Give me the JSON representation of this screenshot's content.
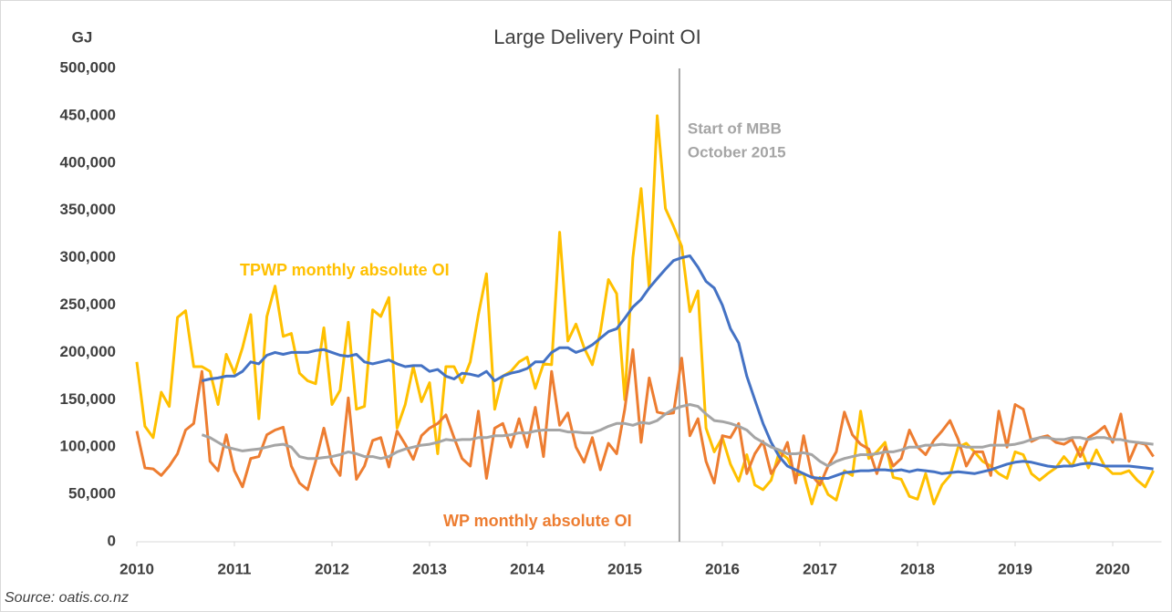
{
  "chart_data": {
    "type": "line",
    "title": "Large Delivery Point OI",
    "y_label": "GJ",
    "source": "Source:  oatis.co.nz",
    "xlim": [
      2010,
      2020.5
    ],
    "xticks": [
      2010,
      2011,
      2012,
      2013,
      2014,
      2015,
      2016,
      2017,
      2018,
      2019,
      2020
    ],
    "ylim": [
      0,
      500000
    ],
    "yticks": [
      0,
      {
        "value": 50000,
        "label": "50,000"
      },
      {
        "value": 100000,
        "label": "100,000"
      },
      {
        "value": 150000,
        "label": "150,000"
      },
      {
        "value": 200000,
        "label": "200,000"
      },
      {
        "value": 250000,
        "label": "250,000"
      },
      {
        "value": 300000,
        "label": "300,000"
      },
      {
        "value": 350000,
        "label": "350,000"
      },
      {
        "value": 400000,
        "label": "400,000"
      },
      {
        "value": 450000,
        "label": "450,000"
      },
      {
        "value": 500000,
        "label": "500,000"
      }
    ],
    "grid": false,
    "marker": {
      "x": 2015.56,
      "label": [
        "Start of MBB",
        "October 2015"
      ],
      "color": "#A5A5A5"
    },
    "x": [
      2010,
      2010.083,
      2010.167,
      2010.25,
      2010.333,
      2010.417,
      2010.5,
      2010.583,
      2010.667,
      2010.75,
      2010.833,
      2010.917,
      2011,
      2011.083,
      2011.167,
      2011.25,
      2011.333,
      2011.417,
      2011.5,
      2011.583,
      2011.667,
      2011.75,
      2011.833,
      2011.917,
      2012,
      2012.083,
      2012.167,
      2012.25,
      2012.333,
      2012.417,
      2012.5,
      2012.583,
      2012.667,
      2012.75,
      2012.833,
      2012.917,
      2013,
      2013.083,
      2013.167,
      2013.25,
      2013.333,
      2013.417,
      2013.5,
      2013.583,
      2013.667,
      2013.75,
      2013.833,
      2013.917,
      2014,
      2014.083,
      2014.167,
      2014.25,
      2014.333,
      2014.417,
      2014.5,
      2014.583,
      2014.667,
      2014.75,
      2014.833,
      2014.917,
      2015,
      2015.083,
      2015.167,
      2015.25,
      2015.333,
      2015.417,
      2015.5,
      2015.583,
      2015.667,
      2015.75,
      2015.833,
      2015.917,
      2016,
      2016.083,
      2016.167,
      2016.25,
      2016.333,
      2016.417,
      2016.5,
      2016.583,
      2016.667,
      2016.75,
      2016.833,
      2016.917,
      2017,
      2017.083,
      2017.167,
      2017.25,
      2017.333,
      2017.417,
      2017.5,
      2017.583,
      2017.667,
      2017.75,
      2017.833,
      2017.917,
      2018,
      2018.083,
      2018.167,
      2018.25,
      2018.333,
      2018.417,
      2018.5,
      2018.583,
      2018.667,
      2018.75,
      2018.833,
      2018.917,
      2019,
      2019.083,
      2019.167,
      2019.25,
      2019.333,
      2019.417,
      2019.5,
      2019.583,
      2019.667,
      2019.75,
      2019.833,
      2019.917,
      2020,
      2020.083,
      2020.167,
      2020.25,
      2020.333,
      2020.417
    ],
    "series": [
      {
        "name": "TPWP monthly absolute OI",
        "color": "#FFC000",
        "values": [
          190000,
          122000,
          110000,
          158000,
          143000,
          237000,
          244000,
          185000,
          185000,
          180000,
          145000,
          198000,
          178000,
          205000,
          240000,
          130000,
          238000,
          270000,
          217000,
          220000,
          178000,
          170000,
          167000,
          226000,
          145000,
          160000,
          232000,
          140000,
          143000,
          245000,
          238000,
          258000,
          120000,
          145000,
          185000,
          148000,
          168000,
          93000,
          185000,
          185000,
          168000,
          190000,
          240000,
          283000,
          140000,
          175000,
          180000,
          190000,
          195000,
          162000,
          188000,
          187000,
          327000,
          212000,
          230000,
          205000,
          187000,
          222000,
          277000,
          262000,
          150000,
          300000,
          373000,
          268000,
          450000,
          352000,
          333000,
          312000,
          243000,
          265000,
          120000,
          95000,
          110000,
          82000,
          64000,
          92000,
          60000,
          55000,
          65000,
          95000,
          88000,
          70000,
          72000,
          40000,
          68000,
          50000,
          44000,
          75000,
          70000,
          138000,
          88000,
          95000,
          105000,
          68000,
          66000,
          48000,
          45000,
          72000,
          40000,
          60000,
          70000,
          100000,
          104000,
          95000,
          85000,
          80000,
          72000,
          67000,
          95000,
          92000,
          72000,
          65000,
          72000,
          78000,
          90000,
          80000,
          100000,
          78000,
          97000,
          80000,
          72000,
          72000,
          75000,
          65000,
          58000,
          75000
        ]
      },
      {
        "name": "WP monthly absolute OI",
        "color": "#ED7D31",
        "values": [
          117000,
          78000,
          77000,
          70000,
          80000,
          93000,
          118000,
          125000,
          180000,
          85000,
          75000,
          113000,
          75000,
          58000,
          88000,
          90000,
          113000,
          118000,
          121000,
          80000,
          62000,
          55000,
          85000,
          120000,
          83000,
          70000,
          152000,
          66000,
          80000,
          107000,
          110000,
          79000,
          117000,
          103000,
          87000,
          112000,
          120000,
          125000,
          134000,
          110000,
          88000,
          80000,
          138000,
          67000,
          120000,
          125000,
          100000,
          130000,
          100000,
          142000,
          90000,
          180000,
          123000,
          136000,
          100000,
          84000,
          110000,
          76000,
          104000,
          93000,
          140000,
          203000,
          105000,
          173000,
          137000,
          135000,
          136000,
          194000,
          112000,
          130000,
          85000,
          62000,
          112000,
          110000,
          125000,
          72000,
          93000,
          106000,
          72000,
          85000,
          105000,
          62000,
          112000,
          70000,
          60000,
          80000,
          95000,
          137000,
          113000,
          103000,
          98000,
          72000,
          100000,
          80000,
          88000,
          118000,
          100000,
          92000,
          107000,
          117000,
          128000,
          108000,
          80000,
          95000,
          95000,
          70000,
          138000,
          100000,
          145000,
          140000,
          106000,
          110000,
          112000,
          105000,
          103000,
          108000,
          90000,
          110000,
          115000,
          122000,
          105000,
          135000,
          85000,
          105000,
          103000,
          90000
        ]
      },
      {
        "color": "#4472C4",
        "values": [
          null,
          null,
          null,
          null,
          null,
          null,
          null,
          null,
          170000,
          172000,
          173000,
          175000,
          175000,
          180000,
          190000,
          188000,
          197000,
          200000,
          198000,
          200000,
          200000,
          200000,
          202000,
          203000,
          200000,
          197000,
          196000,
          198000,
          190000,
          188000,
          190000,
          192000,
          188000,
          185000,
          186000,
          186000,
          180000,
          182000,
          175000,
          172000,
          178000,
          177000,
          175000,
          180000,
          170000,
          175000,
          178000,
          180000,
          183000,
          190000,
          190000,
          200000,
          205000,
          205000,
          200000,
          203000,
          208000,
          215000,
          222000,
          225000,
          236000,
          248000,
          256000,
          268000,
          278000,
          288000,
          297000,
          300000,
          302000,
          290000,
          275000,
          268000,
          250000,
          225000,
          210000,
          175000,
          150000,
          125000,
          105000,
          90000,
          80000,
          76000,
          72000,
          68000,
          67000,
          67000,
          70000,
          73000,
          74000,
          75000,
          75000,
          76000,
          76000,
          75000,
          76000,
          74000,
          76000,
          75000,
          74000,
          72000,
          73000,
          74000,
          73000,
          72000,
          74000,
          76000,
          79000,
          82000,
          84000,
          85000,
          84000,
          82000,
          80000,
          79000,
          80000,
          80000,
          82000,
          83000,
          82000,
          80000,
          80000,
          80000,
          80000,
          79000,
          78000,
          77000
        ]
      },
      {
        "color": "#A5A5A5",
        "values": [
          null,
          null,
          null,
          null,
          null,
          null,
          null,
          null,
          113000,
          110000,
          105000,
          100000,
          98000,
          96000,
          97000,
          98000,
          100000,
          102000,
          103000,
          100000,
          90000,
          88000,
          88000,
          89000,
          90000,
          92000,
          95000,
          93000,
          90000,
          90000,
          88000,
          90000,
          95000,
          98000,
          100000,
          102000,
          103000,
          105000,
          108000,
          107000,
          108000,
          108000,
          110000,
          110000,
          112000,
          112000,
          113000,
          115000,
          115000,
          117000,
          118000,
          118000,
          118000,
          116000,
          116000,
          115000,
          115000,
          118000,
          122000,
          125000,
          125000,
          123000,
          126000,
          125000,
          128000,
          135000,
          140000,
          143000,
          145000,
          143000,
          135000,
          128000,
          127000,
          125000,
          122000,
          118000,
          110000,
          105000,
          100000,
          97000,
          93000,
          93000,
          94000,
          92000,
          85000,
          80000,
          85000,
          88000,
          90000,
          92000,
          92000,
          93000,
          95000,
          95000,
          97000,
          100000,
          100000,
          102000,
          102000,
          103000,
          102000,
          102000,
          100000,
          100000,
          100000,
          102000,
          102000,
          102000,
          103000,
          105000,
          108000,
          110000,
          110000,
          108000,
          108000,
          110000,
          110000,
          108000,
          110000,
          110000,
          108000,
          108000,
          106000,
          105000,
          104000,
          103000
        ]
      }
    ]
  }
}
